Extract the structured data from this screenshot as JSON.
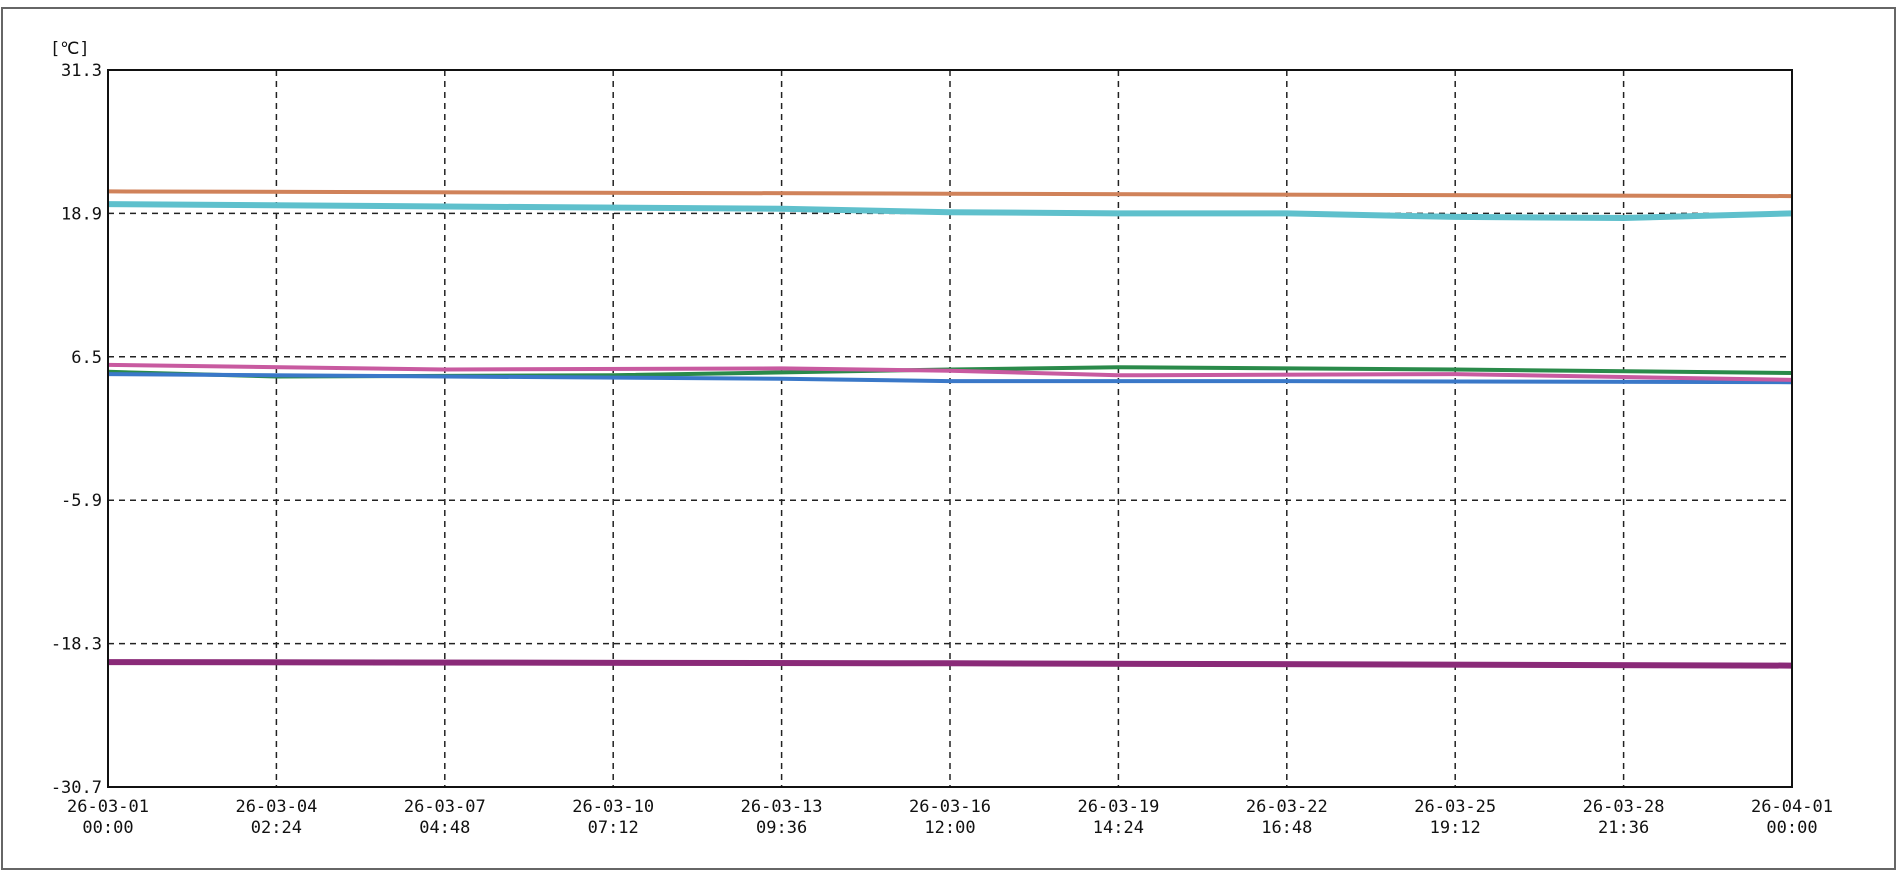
{
  "chart_data": {
    "type": "line",
    "unit_label": "[℃]",
    "xlabel": "",
    "ylabel": "",
    "x_tick_labels": [
      [
        "26-03-01",
        "00:00"
      ],
      [
        "26-03-04",
        "02:24"
      ],
      [
        "26-03-07",
        "04:48"
      ],
      [
        "26-03-10",
        "07:12"
      ],
      [
        "26-03-13",
        "09:36"
      ],
      [
        "26-03-16",
        "12:00"
      ],
      [
        "26-03-19",
        "14:24"
      ],
      [
        "26-03-22",
        "16:48"
      ],
      [
        "26-03-25",
        "19:12"
      ],
      [
        "26-03-28",
        "21:36"
      ],
      [
        "26-04-01",
        "00:00"
      ]
    ],
    "y_ticks": [
      "31.3",
      "18.9",
      "6.5",
      "-5.9",
      "-18.3",
      "-30.7"
    ],
    "ylim": [
      -30.7,
      31.3
    ],
    "xlim": [
      "26-03-01 00:00",
      "26-04-01 00:00"
    ],
    "grid": true,
    "series": [
      {
        "color": "#d0825a",
        "x": [
          "26-03-01 00:00",
          "26-03-16 12:00",
          "26-04-01 00:00"
        ],
        "y": [
          20.8,
          20.6,
          20.4
        ]
      },
      {
        "color": "#5fc0cc",
        "x": [
          "26-03-01 00:00",
          "26-03-07 04:48",
          "26-03-13 09:36",
          "26-03-16 12:00",
          "26-03-19 14:24",
          "26-03-22 16:48",
          "26-03-25 19:12",
          "26-03-28 21:36",
          "26-04-01 00:00"
        ],
        "y": [
          19.7,
          19.5,
          19.3,
          19.0,
          18.9,
          18.9,
          18.6,
          18.5,
          18.9
        ]
      },
      {
        "color": "#2a8a4a",
        "x": [
          "26-03-01 00:00",
          "26-03-04 02:24",
          "26-03-10 07:12",
          "26-03-16 12:00",
          "26-03-19 14:24",
          "26-03-25 19:12",
          "26-04-01 00:00"
        ],
        "y": [
          5.2,
          4.8,
          4.9,
          5.4,
          5.6,
          5.4,
          5.1
        ]
      },
      {
        "color": "#3a78c8",
        "x": [
          "26-03-01 00:00",
          "26-03-07 04:48",
          "26-03-13 09:36",
          "26-03-16 12:00",
          "26-03-22 16:48",
          "26-04-01 00:00"
        ],
        "y": [
          5.0,
          4.8,
          4.6,
          4.4,
          4.4,
          4.3
        ]
      },
      {
        "color": "#c85aa0",
        "x": [
          "26-03-01 00:00",
          "26-03-07 04:48",
          "26-03-13 09:36",
          "26-03-16 12:00",
          "26-03-19 14:24",
          "26-03-25 19:12",
          "26-04-01 00:00"
        ],
        "y": [
          5.8,
          5.4,
          5.5,
          5.3,
          4.9,
          5.0,
          4.5
        ]
      },
      {
        "color": "#8a2a78",
        "x": [
          "26-03-01 00:00",
          "26-03-16 12:00",
          "26-04-01 00:00"
        ],
        "y": [
          -19.9,
          -20.0,
          -20.2
        ]
      }
    ]
  }
}
